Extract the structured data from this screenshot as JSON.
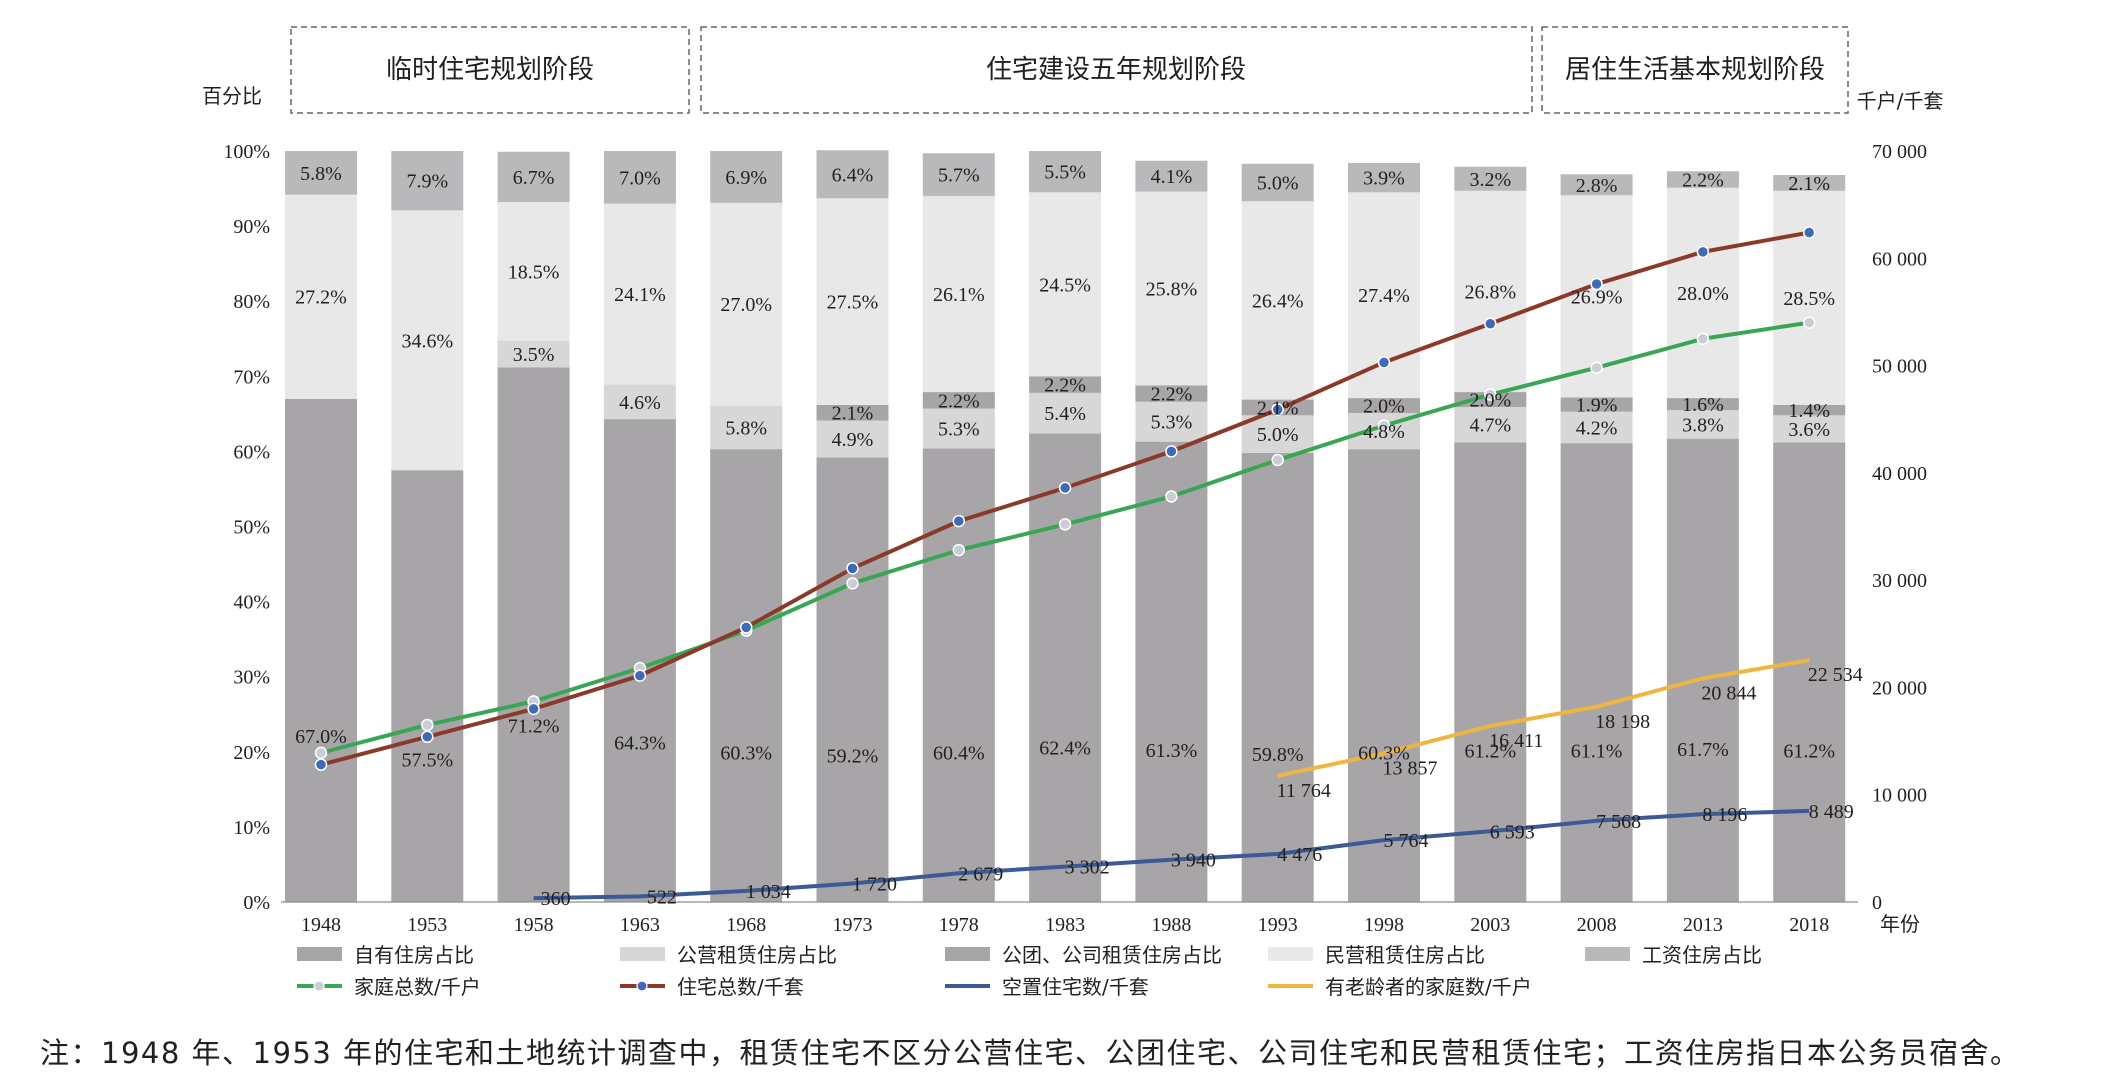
{
  "phases": [
    "临时住宅规划阶段",
    "住宅建设五年规划阶段",
    "居住生活基本规划阶段"
  ],
  "left_axis_title": "百分比",
  "right_axis_title": "千户/千套",
  "x_axis_title": "年份",
  "note": "注：1948 年、1953 年的住宅和土地统计调查中，租赁住宅不区分公营住宅、公团住宅、公司住宅和民营租赁住宅；工资住房指日本公务员宿舍。",
  "colors": {
    "owned": "#a7a5a8",
    "public_rent": "#d7d7d8",
    "corp_rent": "#a7a5a8",
    "private_rent": "#e8e8e9",
    "salary": "#b9b8ba",
    "households": "#3aa655",
    "housing": "#8b3a2a",
    "vacant": "#3c5a96",
    "elderly": "#f0b540",
    "marker_blue": "#3d6bb5",
    "marker_grey": "#c8cdd6"
  },
  "chart_data": {
    "type": "bar",
    "categories": [
      "1948",
      "1953",
      "1958",
      "1963",
      "1968",
      "1973",
      "1978",
      "1983",
      "1988",
      "1993",
      "1998",
      "2003",
      "2008",
      "2013",
      "2018"
    ],
    "ylim_left": [
      0,
      100
    ],
    "ylim_right": [
      0,
      70000
    ],
    "left_ticks": [
      "0%",
      "10%",
      "20%",
      "30%",
      "40%",
      "50%",
      "60%",
      "70%",
      "80%",
      "90%",
      "100%"
    ],
    "right_ticks": [
      "0",
      "10 000",
      "20 000",
      "30 000",
      "40 000",
      "50 000",
      "60 000",
      "70 000"
    ],
    "stacked_series": [
      {
        "name": "自有住房占比",
        "color_key": "owned",
        "values": [
          67.0,
          57.5,
          71.2,
          64.3,
          60.3,
          59.2,
          60.4,
          62.4,
          61.3,
          59.8,
          60.3,
          61.2,
          61.1,
          61.7,
          61.2
        ],
        "labels": [
          "67.0%",
          "57.5%",
          "71.2%",
          "64.3%",
          "60.3%",
          "59.2%",
          "60.4%",
          "62.4%",
          "61.3%",
          "59.8%",
          "60.3%",
          "61.2%",
          "61.1%",
          "61.7%",
          "61.2%"
        ]
      },
      {
        "name": "公营租赁住房占比",
        "color_key": "public_rent",
        "values": [
          0,
          0,
          3.5,
          4.6,
          5.8,
          4.9,
          5.3,
          5.4,
          5.3,
          5.0,
          4.8,
          4.7,
          4.2,
          3.8,
          3.6
        ],
        "labels": [
          "",
          "",
          "3.5%",
          "4.6%",
          "5.8%",
          "4.9%",
          "5.3%",
          "5.4%",
          "5.3%",
          "5.0%",
          "4.8%",
          "4.7%",
          "4.2%",
          "3.8%",
          "3.6%"
        ]
      },
      {
        "name": "公团、公司租赁住房占比",
        "color_key": "corp_rent",
        "values": [
          0,
          0,
          0,
          0,
          0,
          2.1,
          2.2,
          2.2,
          2.2,
          2.1,
          2.0,
          2.0,
          1.9,
          1.6,
          1.4
        ],
        "labels": [
          "",
          "",
          "",
          "",
          "",
          "2.1%",
          "2.2%",
          "2.2%",
          "2.2%",
          "2.1%",
          "2.0%",
          "2.0%",
          "1.9%",
          "1.6%",
          "1.4%"
        ]
      },
      {
        "name": "民营租赁住房占比",
        "color_key": "private_rent",
        "values": [
          27.2,
          34.6,
          18.5,
          24.1,
          27.0,
          27.5,
          26.1,
          24.5,
          25.8,
          26.4,
          27.4,
          26.8,
          26.9,
          28.0,
          28.5
        ],
        "labels": [
          "27.2%",
          "34.6%",
          "18.5%",
          "24.1%",
          "27.0%",
          "27.5%",
          "26.1%",
          "24.5%",
          "25.8%",
          "26.4%",
          "27.4%",
          "26.8%",
          "26.9%",
          "28.0%",
          "28.5%"
        ]
      },
      {
        "name": "工资住房占比",
        "color_key": "salary",
        "values": [
          5.8,
          7.9,
          6.7,
          7.0,
          6.9,
          6.4,
          5.7,
          5.5,
          4.1,
          5.0,
          3.9,
          3.2,
          2.8,
          2.2,
          2.1
        ],
        "labels": [
          "5.8%",
          "7.9%",
          "6.7%",
          "7.0%",
          "6.9%",
          "6.4%",
          "5.7%",
          "5.5%",
          "4.1%",
          "5.0%",
          "3.9%",
          "3.2%",
          "2.8%",
          "2.2%",
          "2.1%"
        ]
      }
    ],
    "line_series": [
      {
        "name": "家庭总数/千户",
        "color_key": "households",
        "marker": "marker_grey",
        "values": [
          13900,
          16500,
          18700,
          21800,
          25300,
          29700,
          32800,
          35200,
          37800,
          41200,
          44400,
          47300,
          49800,
          52500,
          54000
        ]
      },
      {
        "name": "住宅总数/千套",
        "color_key": "housing",
        "marker": "marker_blue",
        "values": [
          12800,
          15400,
          18000,
          21100,
          25600,
          31100,
          35500,
          38600,
          42000,
          45900,
          50300,
          53900,
          57600,
          60600,
          62400
        ]
      },
      {
        "name": "空置住宅数/千套",
        "color_key": "vacant",
        "marker": "",
        "values": [
          null,
          null,
          360,
          522,
          1034,
          1720,
          2679,
          3302,
          3940,
          4476,
          5764,
          6593,
          7568,
          8196,
          8489
        ],
        "labels": [
          "",
          "",
          "360",
          "522",
          "1 034",
          "1 720",
          "2 679",
          "3 302",
          "3 940",
          "4 476",
          "5 764",
          "6 593",
          "7 568",
          "8 196",
          "8 489"
        ]
      },
      {
        "name": "有老龄者的家庭数/千户",
        "color_key": "elderly",
        "marker": "",
        "values": [
          null,
          null,
          null,
          null,
          null,
          null,
          null,
          null,
          null,
          11764,
          13857,
          16411,
          18198,
          20844,
          22534
        ],
        "labels": [
          "",
          "",
          "",
          "",
          "",
          "",
          "",
          "",
          "",
          "11 764",
          "13 857",
          "16 411",
          "18 198",
          "20 844",
          "22 534"
        ]
      }
    ],
    "legend_row1": [
      "自有住房占比",
      "公营租赁住房占比",
      "公团、公司租赁住房占比",
      "民营租赁住房占比",
      "工资住房占比"
    ],
    "legend_row2": [
      "家庭总数/千户",
      "住宅总数/千套",
      "空置住宅数/千套",
      "有老龄者的家庭数/千户"
    ]
  }
}
